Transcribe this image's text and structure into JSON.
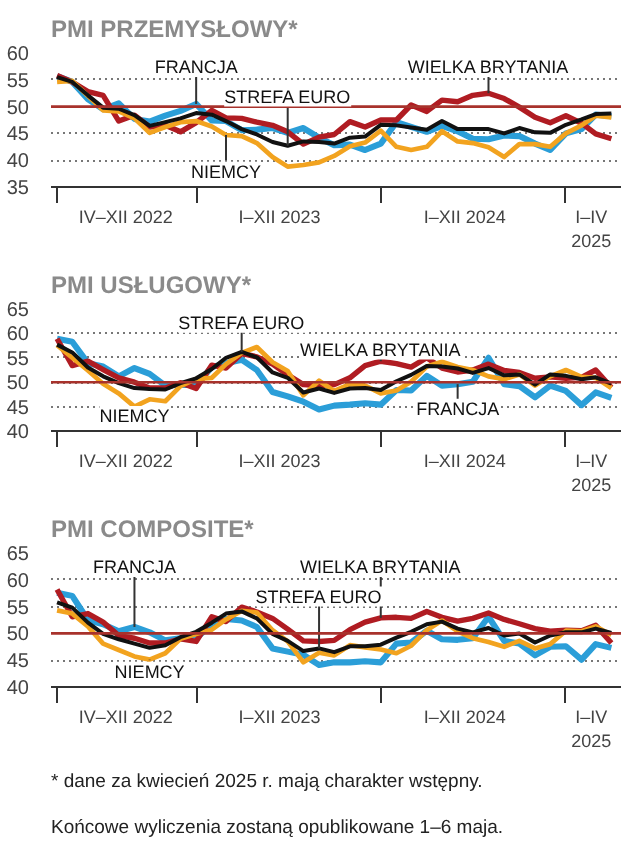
{
  "chart_data": [
    {
      "type": "line",
      "title": "PMI PRZEMYSŁOWY*",
      "x": [
        "2022-04",
        "2022-05",
        "2022-06",
        "2022-07",
        "2022-08",
        "2022-09",
        "2022-10",
        "2022-11",
        "2022-12",
        "2023-01",
        "2023-02",
        "2023-03",
        "2023-04",
        "2023-05",
        "2023-06",
        "2023-07",
        "2023-08",
        "2023-09",
        "2023-10",
        "2023-11",
        "2023-12",
        "2024-01",
        "2024-02",
        "2024-03",
        "2024-04",
        "2024-05",
        "2024-06",
        "2024-07",
        "2024-08",
        "2024-09",
        "2024-10",
        "2024-11",
        "2024-12",
        "2025-01",
        "2025-02",
        "2025-03",
        "2025-04"
      ],
      "xlim": [
        "2022-03-20",
        "2025-04-20"
      ],
      "ylim": [
        35,
        60
      ],
      "yticks": [
        35,
        40,
        45,
        50,
        55,
        60
      ],
      "xticks": [
        {
          "value": "2022-04",
          "label": null
        },
        {
          "value": "2022-08-15",
          "label": "IV–XII 2022"
        },
        {
          "value": "2023-01",
          "label": null
        },
        {
          "value": "2023-06-15",
          "label": "I–XII 2023"
        },
        {
          "value": "2024-01",
          "label": null
        },
        {
          "value": "2024-06-15",
          "label": "I–XII 2024"
        },
        {
          "value": "2025-01",
          "label": null
        },
        {
          "value": "2025-02-20",
          "label": "I–IV\n2025"
        }
      ],
      "grid": "y",
      "ref_lines": [
        {
          "axis": "y",
          "value": 50,
          "color": "#a8322c"
        }
      ],
      "series": [
        {
          "color": "#2b9ed8",
          "values": [
            55.7,
            54.6,
            51.4,
            49.5,
            50.6,
            47.7,
            47.2,
            48.3,
            49.2,
            50.5,
            47.4,
            47.3,
            45.6,
            45.7,
            46.0,
            45.1,
            46.0,
            44.2,
            42.8,
            42.9,
            41.9,
            43.1,
            47.1,
            46.2,
            45.3,
            46.4,
            45.4,
            44.0,
            43.9,
            44.6,
            44.5,
            43.1,
            41.9,
            45.0,
            45.8,
            48.5,
            48.2
          ]
        },
        {
          "color": "#b01c22",
          "values": [
            55.8,
            54.6,
            52.8,
            52.1,
            47.3,
            48.4,
            46.2,
            46.5,
            45.3,
            47.0,
            49.3,
            47.9,
            47.8,
            47.1,
            46.5,
            45.3,
            43.0,
            44.3,
            44.8,
            47.2,
            46.2,
            47.5,
            47.5,
            50.3,
            49.1,
            51.2,
            50.9,
            52.1,
            52.5,
            51.5,
            49.9,
            48.0,
            47.0,
            48.3,
            46.9,
            44.9,
            44.0
          ]
        },
        {
          "color": "#f2a31f",
          "values": [
            54.6,
            54.8,
            52.0,
            49.3,
            49.1,
            47.8,
            45.1,
            46.2,
            47.1,
            47.3,
            46.3,
            44.7,
            44.5,
            43.2,
            40.6,
            38.8,
            39.1,
            39.6,
            40.8,
            42.6,
            43.3,
            45.5,
            42.5,
            41.9,
            42.5,
            45.4,
            43.5,
            43.2,
            42.4,
            40.6,
            43.0,
            43.0,
            42.5,
            45.0,
            46.5,
            48.3,
            48.0
          ]
        },
        {
          "color": "#111111",
          "values": [
            55.5,
            54.6,
            52.1,
            49.8,
            49.6,
            48.4,
            46.4,
            47.1,
            47.8,
            48.8,
            48.5,
            47.3,
            45.8,
            44.8,
            43.4,
            42.7,
            43.5,
            43.4,
            43.1,
            44.2,
            44.4,
            46.6,
            46.5,
            46.1,
            45.7,
            47.3,
            45.8,
            45.8,
            45.8,
            45.0,
            46.0,
            45.2,
            45.1,
            46.6,
            47.6,
            48.6,
            48.7
          ]
        }
      ],
      "annotations": [
        {
          "text": "FRANCJA",
          "x": "2023-01",
          "y": 50.5
        },
        {
          "text": "STREFA EURO",
          "x": "2023-07",
          "y": 42.7
        },
        {
          "text": "WIELKA BRYTANIA",
          "x": "2024-08",
          "y": 52.5
        },
        {
          "text": "NIEMCY",
          "x": "2023-03",
          "y": 44.7
        }
      ]
    },
    {
      "type": "line",
      "title": "PMI USŁUGOWY*",
      "x": [
        "2022-04",
        "2022-05",
        "2022-06",
        "2022-07",
        "2022-08",
        "2022-09",
        "2022-10",
        "2022-11",
        "2022-12",
        "2023-01",
        "2023-02",
        "2023-03",
        "2023-04",
        "2023-05",
        "2023-06",
        "2023-07",
        "2023-08",
        "2023-09",
        "2023-10",
        "2023-11",
        "2023-12",
        "2024-01",
        "2024-02",
        "2024-03",
        "2024-04",
        "2024-05",
        "2024-06",
        "2024-07",
        "2024-08",
        "2024-09",
        "2024-10",
        "2024-11",
        "2024-12",
        "2025-01",
        "2025-02",
        "2025-03",
        "2025-04"
      ],
      "xlim": [
        "2022-03-20",
        "2025-04-20"
      ],
      "ylim": [
        40,
        65
      ],
      "yticks": [
        40,
        45,
        50,
        55,
        60,
        65
      ],
      "xticks": [
        {
          "value": "2022-04",
          "label": null
        },
        {
          "value": "2022-08-15",
          "label": "IV–XII 2022"
        },
        {
          "value": "2023-01",
          "label": null
        },
        {
          "value": "2023-06-15",
          "label": "I–XII 2023"
        },
        {
          "value": "2024-01",
          "label": null
        },
        {
          "value": "2024-06-15",
          "label": "I–XII 2024"
        },
        {
          "value": "2025-01",
          "label": null
        },
        {
          "value": "2025-02-20",
          "label": "I–IV\n2025"
        }
      ],
      "grid": "y",
      "ref_lines": [
        {
          "axis": "y",
          "value": 50,
          "color": "#a8322c"
        }
      ],
      "series": [
        {
          "color": "#2b9ed8",
          "values": [
            58.9,
            58.3,
            53.9,
            53.2,
            51.2,
            52.9,
            51.7,
            49.3,
            49.5,
            49.4,
            53.1,
            53.9,
            54.6,
            52.5,
            48.0,
            47.1,
            46.0,
            44.4,
            45.2,
            45.4,
            45.7,
            45.4,
            48.4,
            48.3,
            51.3,
            49.3,
            49.6,
            50.1,
            55.0,
            49.6,
            49.2,
            46.9,
            49.3,
            48.2,
            45.3,
            47.9,
            46.8
          ]
        },
        {
          "color": "#b01c22",
          "values": [
            58.9,
            53.4,
            54.3,
            52.6,
            50.9,
            50.0,
            48.8,
            48.8,
            49.9,
            48.7,
            53.5,
            52.9,
            55.9,
            55.2,
            53.7,
            51.5,
            49.5,
            49.3,
            49.5,
            50.9,
            53.4,
            54.3,
            53.8,
            53.1,
            55.0,
            52.9,
            52.1,
            52.5,
            53.7,
            52.4,
            52.0,
            50.8,
            51.1,
            50.8,
            51.0,
            52.5,
            48.9
          ]
        },
        {
          "color": "#f2a31f",
          "values": [
            57.6,
            55.0,
            52.4,
            49.7,
            47.7,
            45.0,
            46.5,
            46.1,
            49.2,
            50.7,
            50.9,
            53.7,
            56.0,
            57.2,
            54.1,
            52.3,
            47.3,
            50.3,
            48.2,
            49.6,
            49.3,
            47.7,
            48.3,
            50.1,
            53.2,
            54.2,
            53.1,
            52.5,
            51.2,
            50.6,
            51.6,
            49.3,
            51.2,
            52.5,
            51.1,
            50.9,
            48.8
          ]
        },
        {
          "color": "#111111",
          "values": [
            57.7,
            56.1,
            53.0,
            51.2,
            49.8,
            48.8,
            48.6,
            48.5,
            49.8,
            50.8,
            52.7,
            55.0,
            56.2,
            55.1,
            52.0,
            50.9,
            47.9,
            48.7,
            47.8,
            48.7,
            48.8,
            48.4,
            50.2,
            51.5,
            53.3,
            53.2,
            52.8,
            51.9,
            52.9,
            51.4,
            51.6,
            49.5,
            51.6,
            51.3,
            50.6,
            51.0,
            49.7
          ]
        }
      ],
      "annotations": [
        {
          "text": "STREFA EURO",
          "x": "2023-04",
          "y": 56.2
        },
        {
          "text": "WIELKA BRYTANIA",
          "x": "2024-01",
          "y": 54.3
        },
        {
          "text": "NIEMCY",
          "x": "2022-09",
          "y": 45.0
        },
        {
          "text": "FRANCJA",
          "x": "2024-06",
          "y": 49.6
        }
      ]
    },
    {
      "type": "line",
      "title": "PMI COMPOSITE*",
      "x": [
        "2022-04",
        "2022-05",
        "2022-06",
        "2022-07",
        "2022-08",
        "2022-09",
        "2022-10",
        "2022-11",
        "2022-12",
        "2023-01",
        "2023-02",
        "2023-03",
        "2023-04",
        "2023-05",
        "2023-06",
        "2023-07",
        "2023-08",
        "2023-09",
        "2023-10",
        "2023-11",
        "2023-12",
        "2024-01",
        "2024-02",
        "2024-03",
        "2024-04",
        "2024-05",
        "2024-06",
        "2024-07",
        "2024-08",
        "2024-09",
        "2024-10",
        "2024-11",
        "2024-12",
        "2025-01",
        "2025-02",
        "2025-03",
        "2025-04"
      ],
      "xlim": [
        "2022-03-20",
        "2025-04-20"
      ],
      "ylim": [
        40,
        65
      ],
      "yticks": [
        40,
        45,
        50,
        55,
        60,
        65
      ],
      "xticks": [
        {
          "value": "2022-04",
          "label": null
        },
        {
          "value": "2022-08-15",
          "label": "IV–XII 2022"
        },
        {
          "value": "2023-01",
          "label": null
        },
        {
          "value": "2023-06-15",
          "label": "I–XII 2023"
        },
        {
          "value": "2024-01",
          "label": null
        },
        {
          "value": "2024-06-15",
          "label": "I–XII 2024"
        },
        {
          "value": "2025-01",
          "label": null
        },
        {
          "value": "2025-02-20",
          "label": "I–IV\n2025"
        }
      ],
      "grid": "y",
      "ref_lines": [
        {
          "axis": "y",
          "value": 50,
          "color": "#a8322c"
        }
      ],
      "series": [
        {
          "color": "#2b9ed8",
          "values": [
            57.6,
            57.0,
            52.5,
            51.7,
            50.4,
            51.2,
            50.2,
            48.7,
            49.1,
            49.1,
            51.7,
            52.7,
            52.4,
            51.2,
            47.2,
            46.6,
            46.0,
            44.1,
            44.6,
            44.6,
            44.8,
            44.6,
            48.1,
            48.3,
            50.5,
            48.9,
            48.8,
            49.1,
            53.1,
            48.6,
            48.1,
            45.9,
            47.5,
            47.6,
            45.1,
            48.0,
            47.3
          ]
        },
        {
          "color": "#b01c22",
          "values": [
            58.2,
            53.1,
            53.7,
            52.1,
            49.6,
            49.1,
            48.2,
            48.2,
            49.0,
            48.5,
            53.1,
            52.2,
            54.9,
            54.0,
            52.8,
            50.8,
            48.6,
            48.5,
            48.7,
            50.7,
            52.1,
            52.9,
            53.0,
            52.8,
            54.1,
            53.0,
            52.3,
            52.8,
            53.8,
            52.6,
            51.8,
            50.9,
            50.4,
            50.6,
            50.5,
            51.5,
            48.2
          ]
        },
        {
          "color": "#f2a31f",
          "values": [
            54.3,
            53.7,
            51.3,
            48.1,
            46.9,
            45.7,
            45.1,
            46.3,
            49.0,
            49.9,
            50.7,
            52.6,
            54.2,
            53.9,
            50.6,
            48.5,
            44.6,
            46.4,
            45.9,
            47.8,
            47.4,
            47.0,
            46.3,
            47.7,
            50.6,
            52.4,
            50.4,
            49.1,
            48.4,
            47.5,
            48.6,
            47.2,
            48.0,
            50.5,
            50.4,
            51.3,
            49.7
          ]
        },
        {
          "color": "#111111",
          "values": [
            55.8,
            54.8,
            52.0,
            49.9,
            48.9,
            48.1,
            47.3,
            47.8,
            49.3,
            50.3,
            52.0,
            53.7,
            54.1,
            52.8,
            49.9,
            48.6,
            46.7,
            47.2,
            46.5,
            47.6,
            47.6,
            47.9,
            49.2,
            50.3,
            51.7,
            52.2,
            50.9,
            50.2,
            51.0,
            49.6,
            50.0,
            48.3,
            49.6,
            50.2,
            50.2,
            50.9,
            50.1
          ]
        }
      ],
      "annotations": [
        {
          "text": "FRANCJA",
          "x": "2022-09",
          "y": 51.2
        },
        {
          "text": "STREFA EURO",
          "x": "2023-09",
          "y": 47.2
        },
        {
          "text": "WIELKA BRYTANIA",
          "x": "2024-01",
          "y": 52.9
        },
        {
          "text": "NIEMCY",
          "x": "2022-10",
          "y": 45.1
        },
        "* dane za kwiecień 2025 r. mają charakter wstępny.",
        "Końcowe wyliczenia zostaną opublikowane 1–6 maja."
      ]
    }
  ]
}
